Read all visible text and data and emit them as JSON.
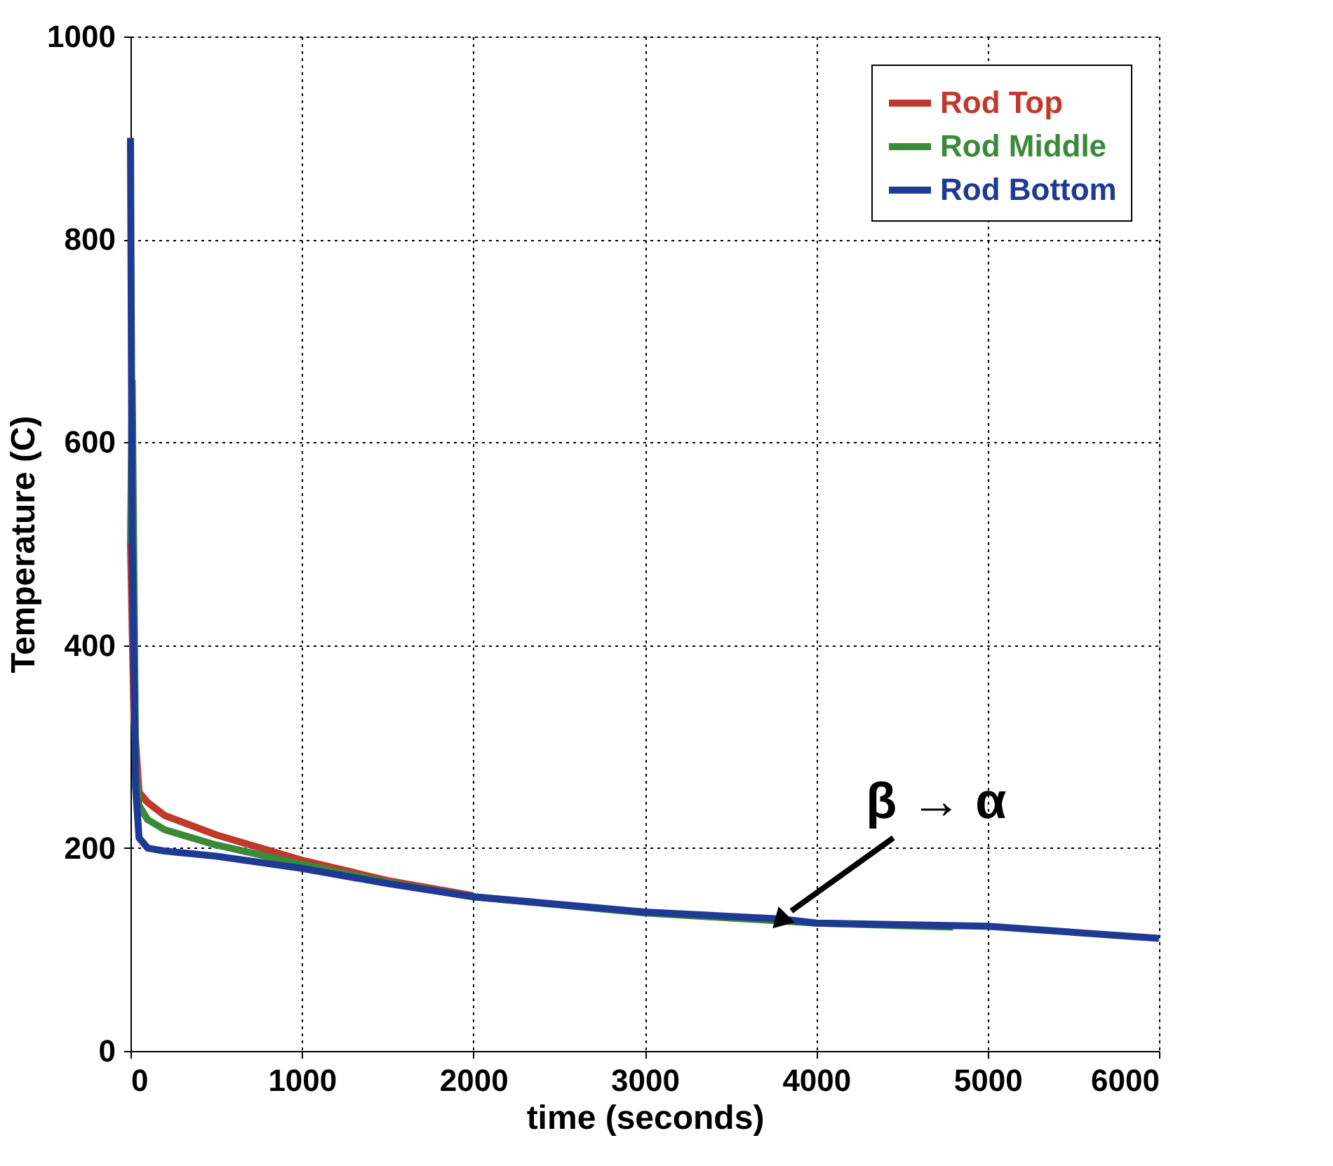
{
  "chart_data": {
    "type": "line",
    "xlabel": "time (seconds)",
    "ylabel": "Temperature (C)",
    "xlim": [
      0,
      6000
    ],
    "ylim": [
      0,
      1000
    ],
    "xticks": [
      0,
      1000,
      2000,
      3000,
      4000,
      5000,
      6000
    ],
    "yticks": [
      0,
      200,
      400,
      600,
      800,
      1000
    ],
    "grid": true,
    "legend": "top right",
    "line_style": "solid",
    "marker": "none",
    "series": [
      {
        "name": "Rod Top",
        "color": "#c0392b",
        "x": [
          0,
          20,
          50,
          100,
          200,
          500,
          1000,
          1500,
          2000
        ],
        "values": [
          500,
          330,
          255,
          245,
          232,
          213,
          188,
          168,
          153
        ]
      },
      {
        "name": "Rod Middle",
        "color": "#3a8a3a",
        "x": [
          0,
          10,
          30,
          50,
          100,
          200,
          500,
          1000,
          1500,
          2000,
          3000,
          4000,
          4800
        ],
        "values": [
          500,
          660,
          280,
          242,
          228,
          218,
          203,
          184,
          166,
          152,
          136,
          126,
          122
        ]
      },
      {
        "name": "Rod Bottom",
        "color": "#1f3a93",
        "x": [
          0,
          10,
          30,
          50,
          100,
          200,
          500,
          1000,
          1500,
          2000,
          3000,
          3800,
          4000,
          5000,
          6000
        ],
        "values": [
          900,
          500,
          260,
          210,
          200,
          197,
          192,
          180,
          165,
          152,
          137,
          130,
          126,
          123,
          111
        ]
      }
    ],
    "annotations": [
      {
        "text": "β → α",
        "x": 3800,
        "y": 130
      }
    ]
  }
}
